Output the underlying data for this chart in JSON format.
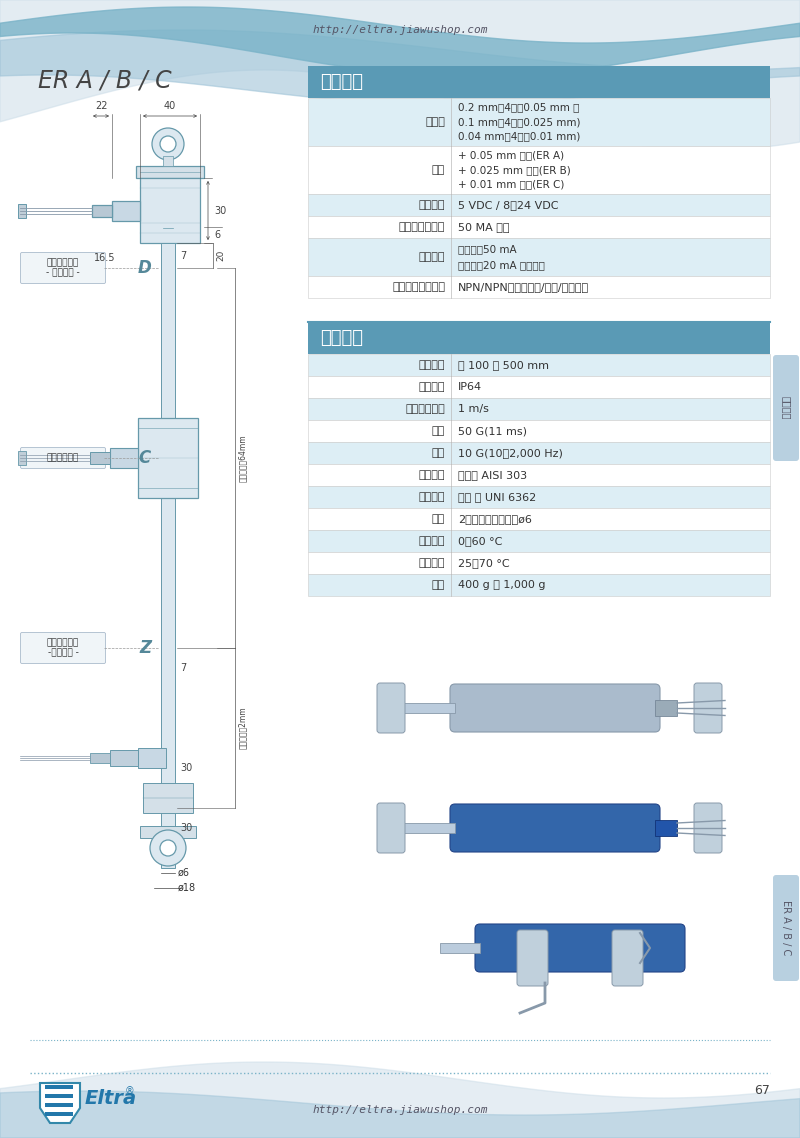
{
  "page_url": "http://eltra.jiawushop.com",
  "title": "ER A / B / C",
  "page_number": "67",
  "bg_color": "#f5f8fb",
  "table1_title": "电气特性",
  "table1_rows": [
    [
      "分辨率",
      "0.2 mm（4倍频0.05 mm ）\n0.1 mm（4倍频0.025 mm)\n0.04 mm（4倍频0.01 mm)"
    ],
    [
      "精度",
      "+ 0.05 mm 最大(ER A)\n+ 0.025 mm 最大(ER B)\n+ 0.01 mm 最大(ER C)"
    ],
    [
      "供电电源",
      "5 VDC / 8～24 VDC"
    ],
    [
      "无负载输入电流",
      "50 MA 最大"
    ],
    [
      "最大电流",
      "每个通道50 mA\n每个通道20 mA 长线驱动"
    ],
    [
      "电气信号输出方式",
      "NPN/NPN集电极开路/推挽/长线驱动"
    ]
  ],
  "table2_title": "机械特性",
  "table2_rows": [
    [
      "工作行程",
      "从 100 到 500 mm"
    ],
    [
      "防护等级",
      "IP64"
    ],
    [
      "最大运动速度",
      "1 m/s"
    ],
    [
      "冲击",
      "50 G(11 ms)"
    ],
    [
      "振动",
      "10 G(10～2,000 Hz)"
    ],
    [
      "主体材料",
      "不锈钢 AISI 303"
    ],
    [
      "外壳材料",
      "喷漆 铝 UNI 6362"
    ],
    [
      "安装",
      "2个球铰，安装孔径ø6"
    ],
    [
      "工作温度",
      "0～60 °C"
    ],
    [
      "储存温度",
      "25～70 °C"
    ],
    [
      "重量",
      "400 g ～ 1,000 g"
    ]
  ],
  "table_header_color": "#5a9ab5",
  "table_row_alt_color": "#ddeef5",
  "table_row_normal_color": "#ffffff",
  "side_tab_text": "其它产品",
  "side_tab_text2": "ER A / B / C",
  "drawing_line_color": "#6699aa"
}
